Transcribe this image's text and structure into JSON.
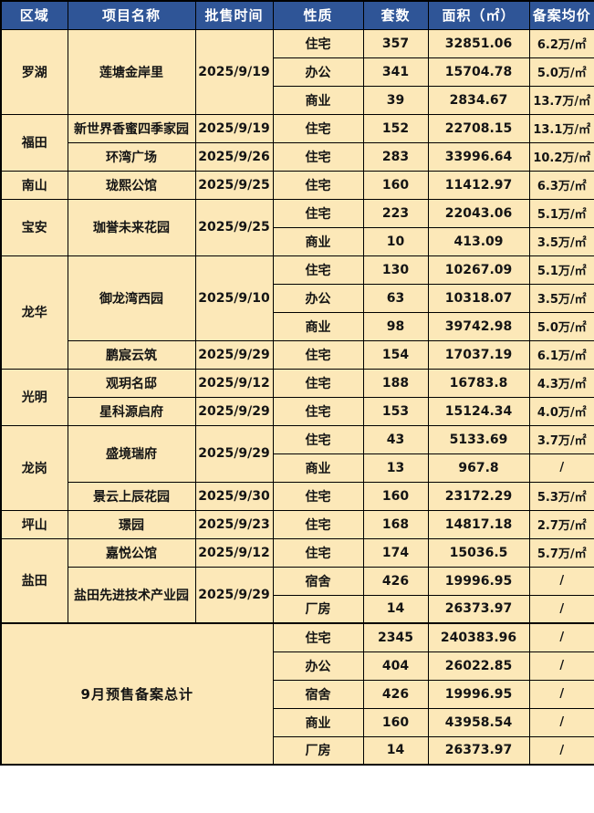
{
  "colors": {
    "header_bg": "#2F5597",
    "header_text": "#FFFFFF",
    "cell_bg": "#FCE8B8",
    "border": "#000000"
  },
  "table": {
    "headers": [
      "区域",
      "项目名称",
      "批售时间",
      "性质",
      "套数",
      "面积（㎡）",
      "备案均价"
    ],
    "regions": [
      {
        "name": "罗湖",
        "projects": [
          {
            "name": "莲塘金岸里",
            "date": "2025/9/19",
            "rows": [
              [
                "住宅",
                "357",
                "32851.06",
                "6.2万/㎡"
              ],
              [
                "办公",
                "341",
                "15704.78",
                "5.0万/㎡"
              ],
              [
                "商业",
                "39",
                "2834.67",
                "13.7万/㎡"
              ]
            ]
          }
        ]
      },
      {
        "name": "福田",
        "projects": [
          {
            "name": "新世界香蜜四季家园",
            "date": "2025/9/19",
            "rows": [
              [
                "住宅",
                "152",
                "22708.15",
                "13.1万/㎡"
              ]
            ]
          },
          {
            "name": "环湾广场",
            "date": "2025/9/26",
            "rows": [
              [
                "住宅",
                "283",
                "33996.64",
                "10.2万/㎡"
              ]
            ]
          }
        ]
      },
      {
        "name": "南山",
        "projects": [
          {
            "name": "珑熙公馆",
            "date": "2025/9/25",
            "rows": [
              [
                "住宅",
                "160",
                "11412.97",
                "6.3万/㎡"
              ]
            ]
          }
        ]
      },
      {
        "name": "宝安",
        "projects": [
          {
            "name": "珈誉未来花园",
            "date": "2025/9/25",
            "rows": [
              [
                "住宅",
                "223",
                "22043.06",
                "5.1万/㎡"
              ],
              [
                "商业",
                "10",
                "413.09",
                "3.5万/㎡"
              ]
            ]
          }
        ]
      },
      {
        "name": "龙华",
        "projects": [
          {
            "name": "御龙湾西园",
            "date": "2025/9/10",
            "rows": [
              [
                "住宅",
                "130",
                "10267.09",
                "5.1万/㎡"
              ],
              [
                "办公",
                "63",
                "10318.07",
                "3.5万/㎡"
              ],
              [
                "商业",
                "98",
                "39742.98",
                "5.0万/㎡"
              ]
            ]
          },
          {
            "name": "鹏宸云筑",
            "date": "2025/9/29",
            "rows": [
              [
                "住宅",
                "154",
                "17037.19",
                "6.1万/㎡"
              ]
            ]
          }
        ]
      },
      {
        "name": "光明",
        "projects": [
          {
            "name": "观玥名邸",
            "date": "2025/9/12",
            "rows": [
              [
                "住宅",
                "188",
                "16783.8",
                "4.3万/㎡"
              ]
            ]
          },
          {
            "name": "星科源启府",
            "date": "2025/9/29",
            "rows": [
              [
                "住宅",
                "153",
                "15124.34",
                "4.0万/㎡"
              ]
            ]
          }
        ]
      },
      {
        "name": "龙岗",
        "projects": [
          {
            "name": "盛境瑞府",
            "date": "2025/9/29",
            "rows": [
              [
                "住宅",
                "43",
                "5133.69",
                "3.7万/㎡"
              ],
              [
                "商业",
                "13",
                "967.8",
                "/"
              ]
            ]
          },
          {
            "name": "景云上辰花园",
            "date": "2025/9/30",
            "rows": [
              [
                "住宅",
                "160",
                "23172.29",
                "5.3万/㎡"
              ]
            ]
          }
        ]
      },
      {
        "name": "坪山",
        "projects": [
          {
            "name": "璟园",
            "date": "2025/9/23",
            "rows": [
              [
                "住宅",
                "168",
                "14817.18",
                "2.7万/㎡"
              ]
            ]
          }
        ]
      },
      {
        "name": "盐田",
        "projects": [
          {
            "name": "嘉悦公馆",
            "date": "2025/9/12",
            "rows": [
              [
                "住宅",
                "174",
                "15036.5",
                "5.7万/㎡"
              ]
            ]
          },
          {
            "name": "盐田先进技术产业园",
            "date": "2025/9/29",
            "rows": [
              [
                "宿舍",
                "426",
                "19996.95",
                "/"
              ],
              [
                "厂房",
                "14",
                "26373.97",
                "/"
              ]
            ]
          }
        ]
      }
    ],
    "summary": {
      "label": "9月预售备案总计",
      "rows": [
        [
          "住宅",
          "2345",
          "240383.96",
          "/"
        ],
        [
          "办公",
          "404",
          "26022.85",
          "/"
        ],
        [
          "宿舍",
          "426",
          "19996.95",
          "/"
        ],
        [
          "商业",
          "160",
          "43958.54",
          "/"
        ],
        [
          "厂房",
          "14",
          "26373.97",
          "/"
        ]
      ]
    }
  },
  "chart_data": {
    "type": "table",
    "title": "9月预售备案总计",
    "columns": [
      "区域",
      "项目名称",
      "批售时间",
      "性质",
      "套数",
      "面积（㎡）",
      "备案均价"
    ],
    "rows": [
      [
        "罗湖",
        "莲塘金岸里",
        "2025/9/19",
        "住宅",
        "357",
        "32851.06",
        "6.2万/㎡"
      ],
      [
        "",
        "",
        "",
        "办公",
        "341",
        "15704.78",
        "5.0万/㎡"
      ],
      [
        "",
        "",
        "",
        "商业",
        "39",
        "2834.67",
        "13.7万/㎡"
      ],
      [
        "福田",
        "新世界香蜜四季家园",
        "2025/9/19",
        "住宅",
        "152",
        "22708.15",
        "13.1万/㎡"
      ],
      [
        "",
        "环湾广场",
        "2025/9/26",
        "住宅",
        "283",
        "33996.64",
        "10.2万/㎡"
      ],
      [
        "南山",
        "珑熙公馆",
        "2025/9/25",
        "住宅",
        "160",
        "11412.97",
        "6.3万/㎡"
      ],
      [
        "宝安",
        "珈誉未来花园",
        "2025/9/25",
        "住宅",
        "223",
        "22043.06",
        "5.1万/㎡"
      ],
      [
        "",
        "",
        "",
        "商业",
        "10",
        "413.09",
        "3.5万/㎡"
      ],
      [
        "龙华",
        "御龙湾西园",
        "2025/9/10",
        "住宅",
        "130",
        "10267.09",
        "5.1万/㎡"
      ],
      [
        "",
        "",
        "",
        "办公",
        "63",
        "10318.07",
        "3.5万/㎡"
      ],
      [
        "",
        "",
        "",
        "商业",
        "98",
        "39742.98",
        "5.0万/㎡"
      ],
      [
        "",
        "鹏宸云筑",
        "2025/9/29",
        "住宅",
        "154",
        "17037.19",
        "6.1万/㎡"
      ],
      [
        "光明",
        "观玥名邸",
        "2025/9/12",
        "住宅",
        "188",
        "16783.8",
        "4.3万/㎡"
      ],
      [
        "",
        "星科源启府",
        "2025/9/29",
        "住宅",
        "153",
        "15124.34",
        "4.0万/㎡"
      ],
      [
        "龙岗",
        "盛境瑞府",
        "2025/9/29",
        "住宅",
        "43",
        "5133.69",
        "3.7万/㎡"
      ],
      [
        "",
        "",
        "",
        "商业",
        "13",
        "967.8",
        "/"
      ],
      [
        "",
        "景云上辰花园",
        "2025/9/30",
        "住宅",
        "160",
        "23172.29",
        "5.3万/㎡"
      ],
      [
        "坪山",
        "璟园",
        "2025/9/23",
        "住宅",
        "168",
        "14817.18",
        "2.7万/㎡"
      ],
      [
        "盐田",
        "嘉悦公馆",
        "2025/9/12",
        "住宅",
        "174",
        "15036.5",
        "5.7万/㎡"
      ],
      [
        "",
        "盐田先进技术产业园",
        "2025/9/29",
        "宿舍",
        "426",
        "19996.95",
        "/"
      ],
      [
        "",
        "",
        "",
        "厂房",
        "14",
        "26373.97",
        "/"
      ],
      [
        "9月预售备案总计",
        "",
        "",
        "住宅",
        "2345",
        "240383.96",
        "/"
      ],
      [
        "",
        "",
        "",
        "办公",
        "404",
        "26022.85",
        "/"
      ],
      [
        "",
        "",
        "",
        "宿舍",
        "426",
        "19996.95",
        "/"
      ],
      [
        "",
        "",
        "",
        "商业",
        "160",
        "43958.54",
        "/"
      ],
      [
        "",
        "",
        "",
        "厂房",
        "14",
        "26373.97",
        "/"
      ]
    ]
  }
}
